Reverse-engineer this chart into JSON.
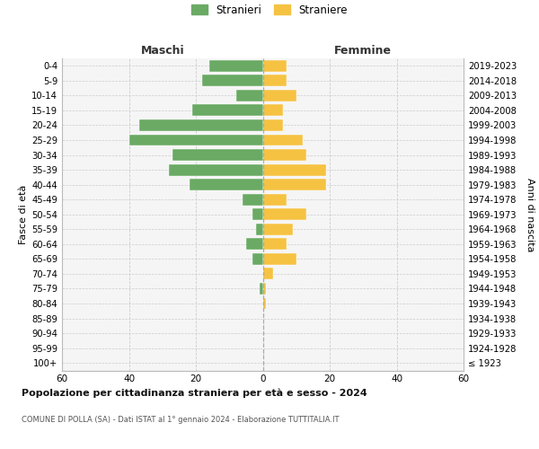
{
  "age_groups": [
    "100+",
    "95-99",
    "90-94",
    "85-89",
    "80-84",
    "75-79",
    "70-74",
    "65-69",
    "60-64",
    "55-59",
    "50-54",
    "45-49",
    "40-44",
    "35-39",
    "30-34",
    "25-29",
    "20-24",
    "15-19",
    "10-14",
    "5-9",
    "0-4"
  ],
  "birth_years": [
    "≤ 1923",
    "1924-1928",
    "1929-1933",
    "1934-1938",
    "1939-1943",
    "1944-1948",
    "1949-1953",
    "1954-1958",
    "1959-1963",
    "1964-1968",
    "1969-1973",
    "1974-1978",
    "1979-1983",
    "1984-1988",
    "1989-1993",
    "1994-1998",
    "1999-2003",
    "2004-2008",
    "2009-2013",
    "2014-2018",
    "2019-2023"
  ],
  "males": [
    0,
    0,
    0,
    0,
    0,
    1,
    0,
    3,
    5,
    2,
    3,
    6,
    22,
    28,
    27,
    40,
    37,
    21,
    8,
    18,
    16
  ],
  "females": [
    0,
    0,
    0,
    0,
    1,
    1,
    3,
    10,
    7,
    9,
    13,
    7,
    19,
    19,
    13,
    12,
    6,
    6,
    10,
    7,
    7
  ],
  "male_color": "#6aaa64",
  "female_color": "#f5c242",
  "title_main": "Popolazione per cittadinanza straniera per età e sesso - 2024",
  "subtitle": "COMUNE DI POLLA (SA) - Dati ISTAT al 1° gennaio 2024 - Elaborazione TUTTITALIA.IT",
  "left_header": "Maschi",
  "right_header": "Femmine",
  "ylabel_left": "Fasce di età",
  "ylabel_right": "Anni di nascita",
  "legend_male": "Stranieri",
  "legend_female": "Straniere",
  "xlim": 60,
  "background_color": "#ffffff",
  "plot_bg": "#f5f5f5",
  "grid_color": "#cccccc"
}
